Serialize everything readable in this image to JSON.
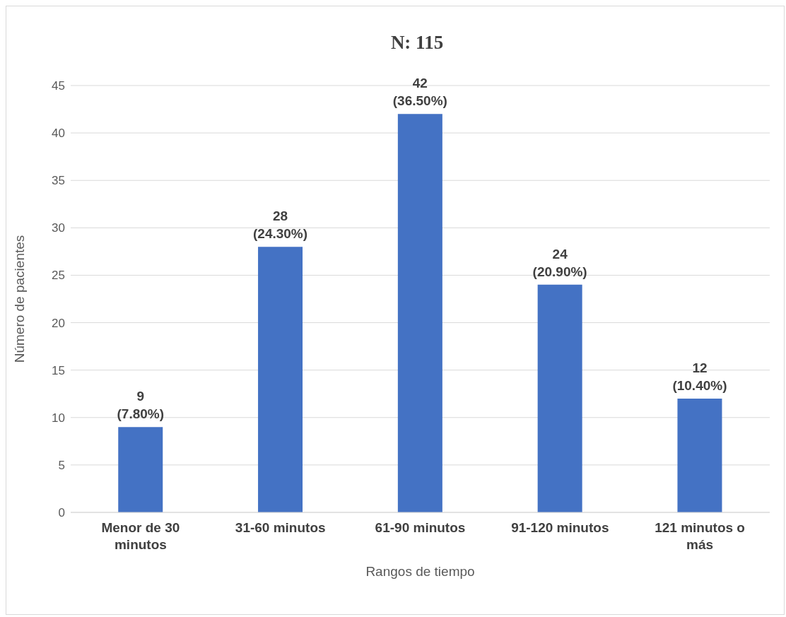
{
  "chart_data": {
    "type": "bar",
    "title": "N: 115",
    "xlabel": "Rangos de tiempo",
    "ylabel": "Número de pacientes",
    "categories": [
      "Menor de 30 minutos",
      "31-60 minutos",
      "61-90 minutos",
      "91-120 minutos",
      "121 minutos o más"
    ],
    "values": [
      9,
      28,
      42,
      24,
      12
    ],
    "value_labels": [
      "9 (7.80%)",
      "28 (24.30%)",
      "42 (36.50%)",
      "24 (20.90%)",
      "12 (10.40%)"
    ],
    "color": "#4472c4",
    "ylim": [
      0,
      45
    ],
    "yticks": [
      0,
      5,
      10,
      15,
      20,
      25,
      30,
      35,
      40,
      45
    ],
    "grid": "y",
    "legend": false
  }
}
